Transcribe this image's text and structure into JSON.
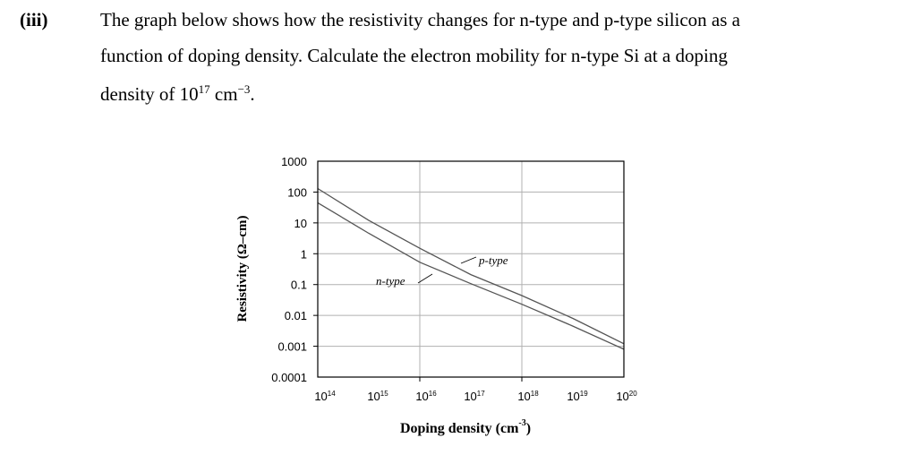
{
  "question": {
    "number": "(iii)",
    "line1": "The graph below shows how the resistivity changes for n-type and p-type silicon as a",
    "line2": "function of doping density. Calculate the electron mobility for n-type Si at a doping",
    "line3_prefix": "density of 10",
    "line3_exp": "17",
    "line3_unit": " cm",
    "line3_unit_exp": "−3",
    "line3_end": "."
  },
  "chart_data": {
    "type": "line",
    "xlabel": "Doping density (cm",
    "xlabel_exp": "-3",
    "xlabel_end": ")",
    "ylabel": "Resistivity (Ω–cm)",
    "xscale": "log",
    "yscale": "log",
    "xlim": [
      100000000000000.0,
      1e+20
    ],
    "ylim": [
      0.0001,
      1000
    ],
    "grid": true,
    "x_tick_labels": [
      [
        "10",
        "14"
      ],
      [
        "10",
        "15"
      ],
      [
        "10",
        "16"
      ],
      [
        "10",
        "17"
      ],
      [
        "10",
        "18"
      ],
      [
        "10",
        "19"
      ],
      [
        "10",
        "20"
      ]
    ],
    "y_tick_labels": [
      "1000",
      "100",
      "10",
      "1",
      "0.1",
      "0.01",
      "0.001",
      "0.0001"
    ],
    "x": [
      100000000000000.0,
      1000000000000000.0,
      1e+16,
      1e+17,
      1e+18,
      1e+19,
      1e+20
    ],
    "series": [
      {
        "name": "p-type",
        "values": [
          130,
          12,
          1.5,
          0.21,
          0.044,
          0.008,
          0.0012
        ]
      },
      {
        "name": "n-type",
        "values": [
          45,
          4.6,
          0.53,
          0.107,
          0.023,
          0.0045,
          0.0008
        ]
      }
    ],
    "colors": {
      "curve": "#555555",
      "grid": "#b0b0b0"
    }
  }
}
